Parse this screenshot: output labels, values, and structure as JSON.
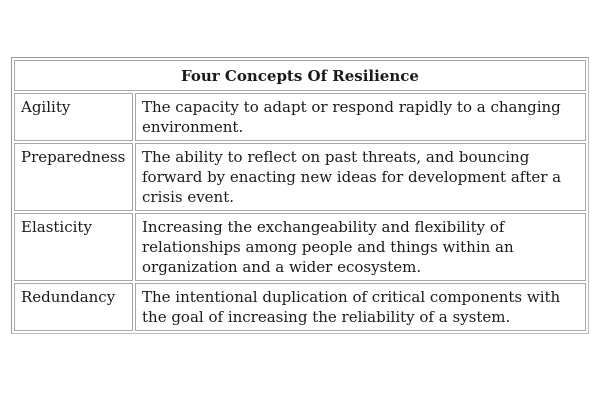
{
  "table": {
    "title": "Four Concepts Of Resilience",
    "rows": [
      {
        "term": "Agility",
        "description": "The capacity to adapt or respond rapidly to a changing environment."
      },
      {
        "term": "Preparedness",
        "description": "The ability to reflect on past threats, and bouncing forward by enacting new ideas for development after a crisis event."
      },
      {
        "term": "Elasticity",
        "description": "Increasing the exchangeability and flexibility of relationships among people and things within an organization and a wider ecosystem."
      },
      {
        "term": "Redundancy",
        "description": "The intentional duplication of critical components with the goal of increasing the reliability of a system."
      }
    ]
  }
}
